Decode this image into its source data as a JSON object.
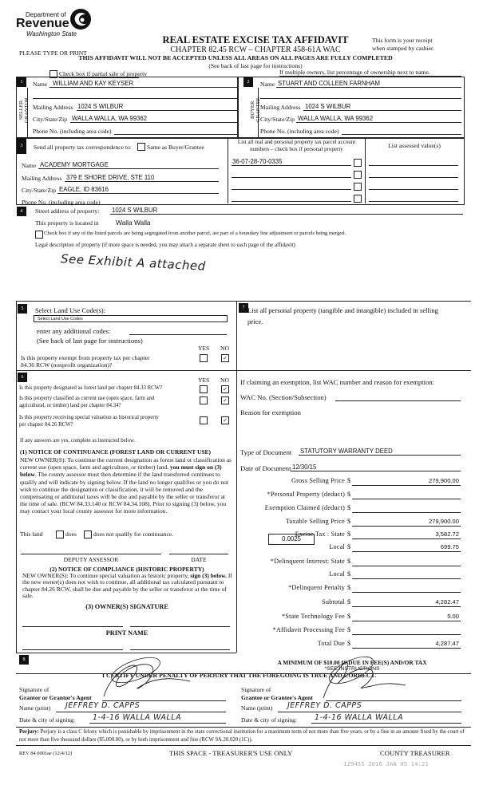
{
  "header": {
    "agency_line1": "Department of",
    "agency_line2": "Revenue",
    "agency_line3": "Washington State",
    "title": "REAL ESTATE EXCISE TAX AFFIDAVIT",
    "chapter": "CHAPTER 82.45 RCW – CHAPTER 458-61A WAC",
    "type_or_print": "PLEASE TYPE OR PRINT",
    "receipt_note_1": "This form is your receipt",
    "receipt_note_2": "when stamped by cashier.",
    "warning": "THIS AFFIDAVIT WILL NOT BE ACCEPTED UNLESS ALL AREAS ON ALL PAGES ARE FULLY COMPLETED",
    "instructions": "(See back of last page for instructions)",
    "partial_sale_label": "Check box if partial sale of property",
    "partial_sale_checked": false,
    "multiple_owners_note": "If multiple owners, list percentage of ownership next to name."
  },
  "seller": {
    "num": "1",
    "side_label_1": "SELLER",
    "side_label_2": "GRANTOR",
    "name_label": "Name",
    "name": "WILLIAM AND KAY KEYSER",
    "mailing_label": "Mailing Address",
    "mailing": "1024 S WILBUR",
    "city_label": "City/State/Zip",
    "city": "WALLA WALLA, WA  99362",
    "phone_label": "Phone No. (including area code)"
  },
  "buyer": {
    "num": "2",
    "side_label_1": "BUYER",
    "side_label_2": "GRANTEE",
    "name_label": "Name",
    "name": "STUART AND COLLEEN FARNHAM",
    "mailing_label": "Mailing Address",
    "mailing": "1024 S WILBUR",
    "city_label": "City/State/Zip",
    "city": "WALLA WALLA, WA  99362",
    "phone_label": "Phone No. (including area code)"
  },
  "correspondence": {
    "num": "3",
    "label": "Send all property tax correspondence to:",
    "same_as_label": "Same as Buyer/Grantee",
    "same_as_checked": false,
    "name_label": "Name",
    "name": "ACADEMY MORTGAGE",
    "mailing_label": "Mailing Address",
    "mailing": "379 E SHORE DRIVE, STE 110",
    "city_label": "City/State/Zip",
    "city": "EAGLE, ID  83616",
    "phone_label": "Phone No. (including area code)",
    "parcels_header_1": "List all real and personal property tax parcel account",
    "parcels_header_2": "numbers – check box if personal property",
    "parcels": [
      "36-07-28-70-0335",
      "",
      "",
      ""
    ],
    "assessed_header": "List assessed value(s)"
  },
  "property": {
    "num": "4",
    "street_label": "Street address of property:",
    "street": "1024 S WILBUR",
    "located_label": "This property is located in",
    "located": "Walla Walla",
    "segregated_label": "Check box if any of the listed parcels are being segregated from another parcel, are part of a boundary line adjustment or parcels being merged.",
    "segregated_checked": false,
    "legal_label": "Legal description of property (if more space is needed, you may attach a separate sheet to each page of the affidavit)",
    "legal_handwritten": "See Exhibit A attached"
  },
  "land_use": {
    "num": "5",
    "label": "Select Land Use Code(s):",
    "select_value": "Select Land Use Codes",
    "additional_label": "enter any additional codes:",
    "see_back": "(See back of last page for instructions)",
    "yes": "YES",
    "no": "NO",
    "exempt_question_1": "Is this property exempt from property tax per chapter",
    "exempt_question_2": "84.36 RCW (nonprofit organization)?",
    "exempt_answer": "NO"
  },
  "section6": {
    "num": "6",
    "yes": "YES",
    "no": "NO",
    "questions": [
      {
        "text_1": "Is this property designated as forest land per chapter 84.33 RCW?",
        "text_2": "",
        "answer": "NO"
      },
      {
        "text_1": "Is this property classified as current use (open space, farm and",
        "text_2": "agricultural, or timber) land per chapter 84.34?",
        "answer": "NO"
      },
      {
        "text_1": "Is this property receiving special valuation as historical property",
        "text_2": "per chapter 84.26 RCW?",
        "answer": "NO"
      }
    ],
    "if_yes": "If any answers are yes, complete as instructed below.",
    "notice1_title": "(1) NOTICE OF CONTINUANCE  (FOREST LAND OR CURRENT USE)",
    "notice1_body_1": "NEW OWNER(S): To continue the current designation as forest land or classification as current use (open space, farm and agriculture, or timber) land, ",
    "notice1_bold": "you must sign on (3) below",
    "notice1_body_2": ". The county assessor must then determine if the land transferred continues to qualify and will indicate by signing below. If the land no longer qualifies or you do not wish to continue the designation or classification, it will be removed and the compensating or additional taxes will be due and payable by the seller or transferor at the time of sale. (RCW 84.33.140 or RCW 84.34.108). Prior to signing (3) below, you may contact your local county assessor for more information.",
    "this_land": "This land",
    "does": "does",
    "does_not": "does not qualify for continuance.",
    "deputy_assessor": "DEPUTY ASSESSOR",
    "date": "DATE",
    "notice2_title": "(2) NOTICE OF COMPLIANCE (HISTORIC PROPERTY)",
    "notice2_body_1": "NEW OWNER(S): To continue special valuation as historic property, ",
    "notice2_bold": "sign (3) below.",
    "notice2_body_2": " If the new owner(s) does not wish to continue, all additional tax calculated pursuant to chapter 84.26 RCW, shall be due and payable by the seller or transferor at the time of sale.",
    "owner_signature": "(3)  OWNER(S) SIGNATURE",
    "print_name": "PRINT NAME"
  },
  "section7": {
    "num": "7",
    "label_1": "List all  personal property (tangible and intangible) included in selling",
    "label_2": "price.",
    "exemption_label": "If claiming an exemption, list WAC number and reason for exemption:",
    "wac_label": "WAC No. (Section/Subsection)",
    "reason_label": "Reason for exemption"
  },
  "totals": {
    "doc_type_label": "Type of Document",
    "doc_type": "STATUTORY WARRANTY DEED",
    "doc_date_label": "Date of Document",
    "doc_date": "12/30/15",
    "local_rate": "0.0025",
    "rows": [
      {
        "label": "Gross Selling Price",
        "value": "279,900.00"
      },
      {
        "label": "*Personal Property (deduct)",
        "value": ""
      },
      {
        "label": "Exemption Claimed (deduct)",
        "value": ""
      },
      {
        "label": "Taxable Selling Price",
        "value": "279,900.00"
      },
      {
        "label": "Excise Tax : State",
        "value": "3,582.72"
      },
      {
        "label": "Local",
        "value": "699.75"
      },
      {
        "label": "*Delinquent Interest: State",
        "value": ""
      },
      {
        "label": "Local",
        "value": ""
      },
      {
        "label": "*Delinquent Penalty",
        "value": ""
      },
      {
        "label": "Subtotal",
        "value": "4,282.47"
      },
      {
        "label": "*State Technology Fee",
        "value": "5.00"
      },
      {
        "label": "*Affidavit Processing Fee",
        "value": ""
      },
      {
        "label": "Total Due",
        "value": "4,287.47"
      }
    ],
    "currency": "$",
    "minimum_note": "A MINIMUM OF $10.00 IS DUE IN FEE(S) AND/OR TAX",
    "see_instructions": "*SEE INSTRUCTIONS"
  },
  "certify": {
    "num": "8",
    "statement": "I CERTIFY UNDER PENALTY OF PERJURY THAT THE FOREGOING IS TRUE AND CORRECT.",
    "signature_of": "Signature of",
    "grantor_label": "Grantor or Grantor's Agent",
    "grantee_label": "Grantee or Grantee's Agent",
    "name_print_label": "Name (print)",
    "date_city_label": "Date & city of signing:",
    "grantor_name": "JEFFREY D. CAPPS",
    "grantor_date_city": "1-4-16   WALLA WALLA",
    "grantee_name": "JEFFREY D. CAPPS",
    "grantee_date_city": "1-4-16   WALLA WALLA"
  },
  "perjury": {
    "label": "Perjury:",
    "text": " Perjury is a class C felony which is punishable by imprisonment in the state correctional institution for a maximum term of not more than five years, or by a fine in an amount fixed by the court of not more than five thousand dollars ($5,000.00), or by both imprisonment and fine (RCW 9A.20.020 (1C))."
  },
  "footer": {
    "form_id": "REV 84 0001ae (12/4/12)",
    "treasurer_space": "THIS SPACE - TREASURER'S USE ONLY",
    "county_treasurer": "COUNTY TREASURER",
    "stamp": "129455 2016 JAN 05 14:21"
  }
}
